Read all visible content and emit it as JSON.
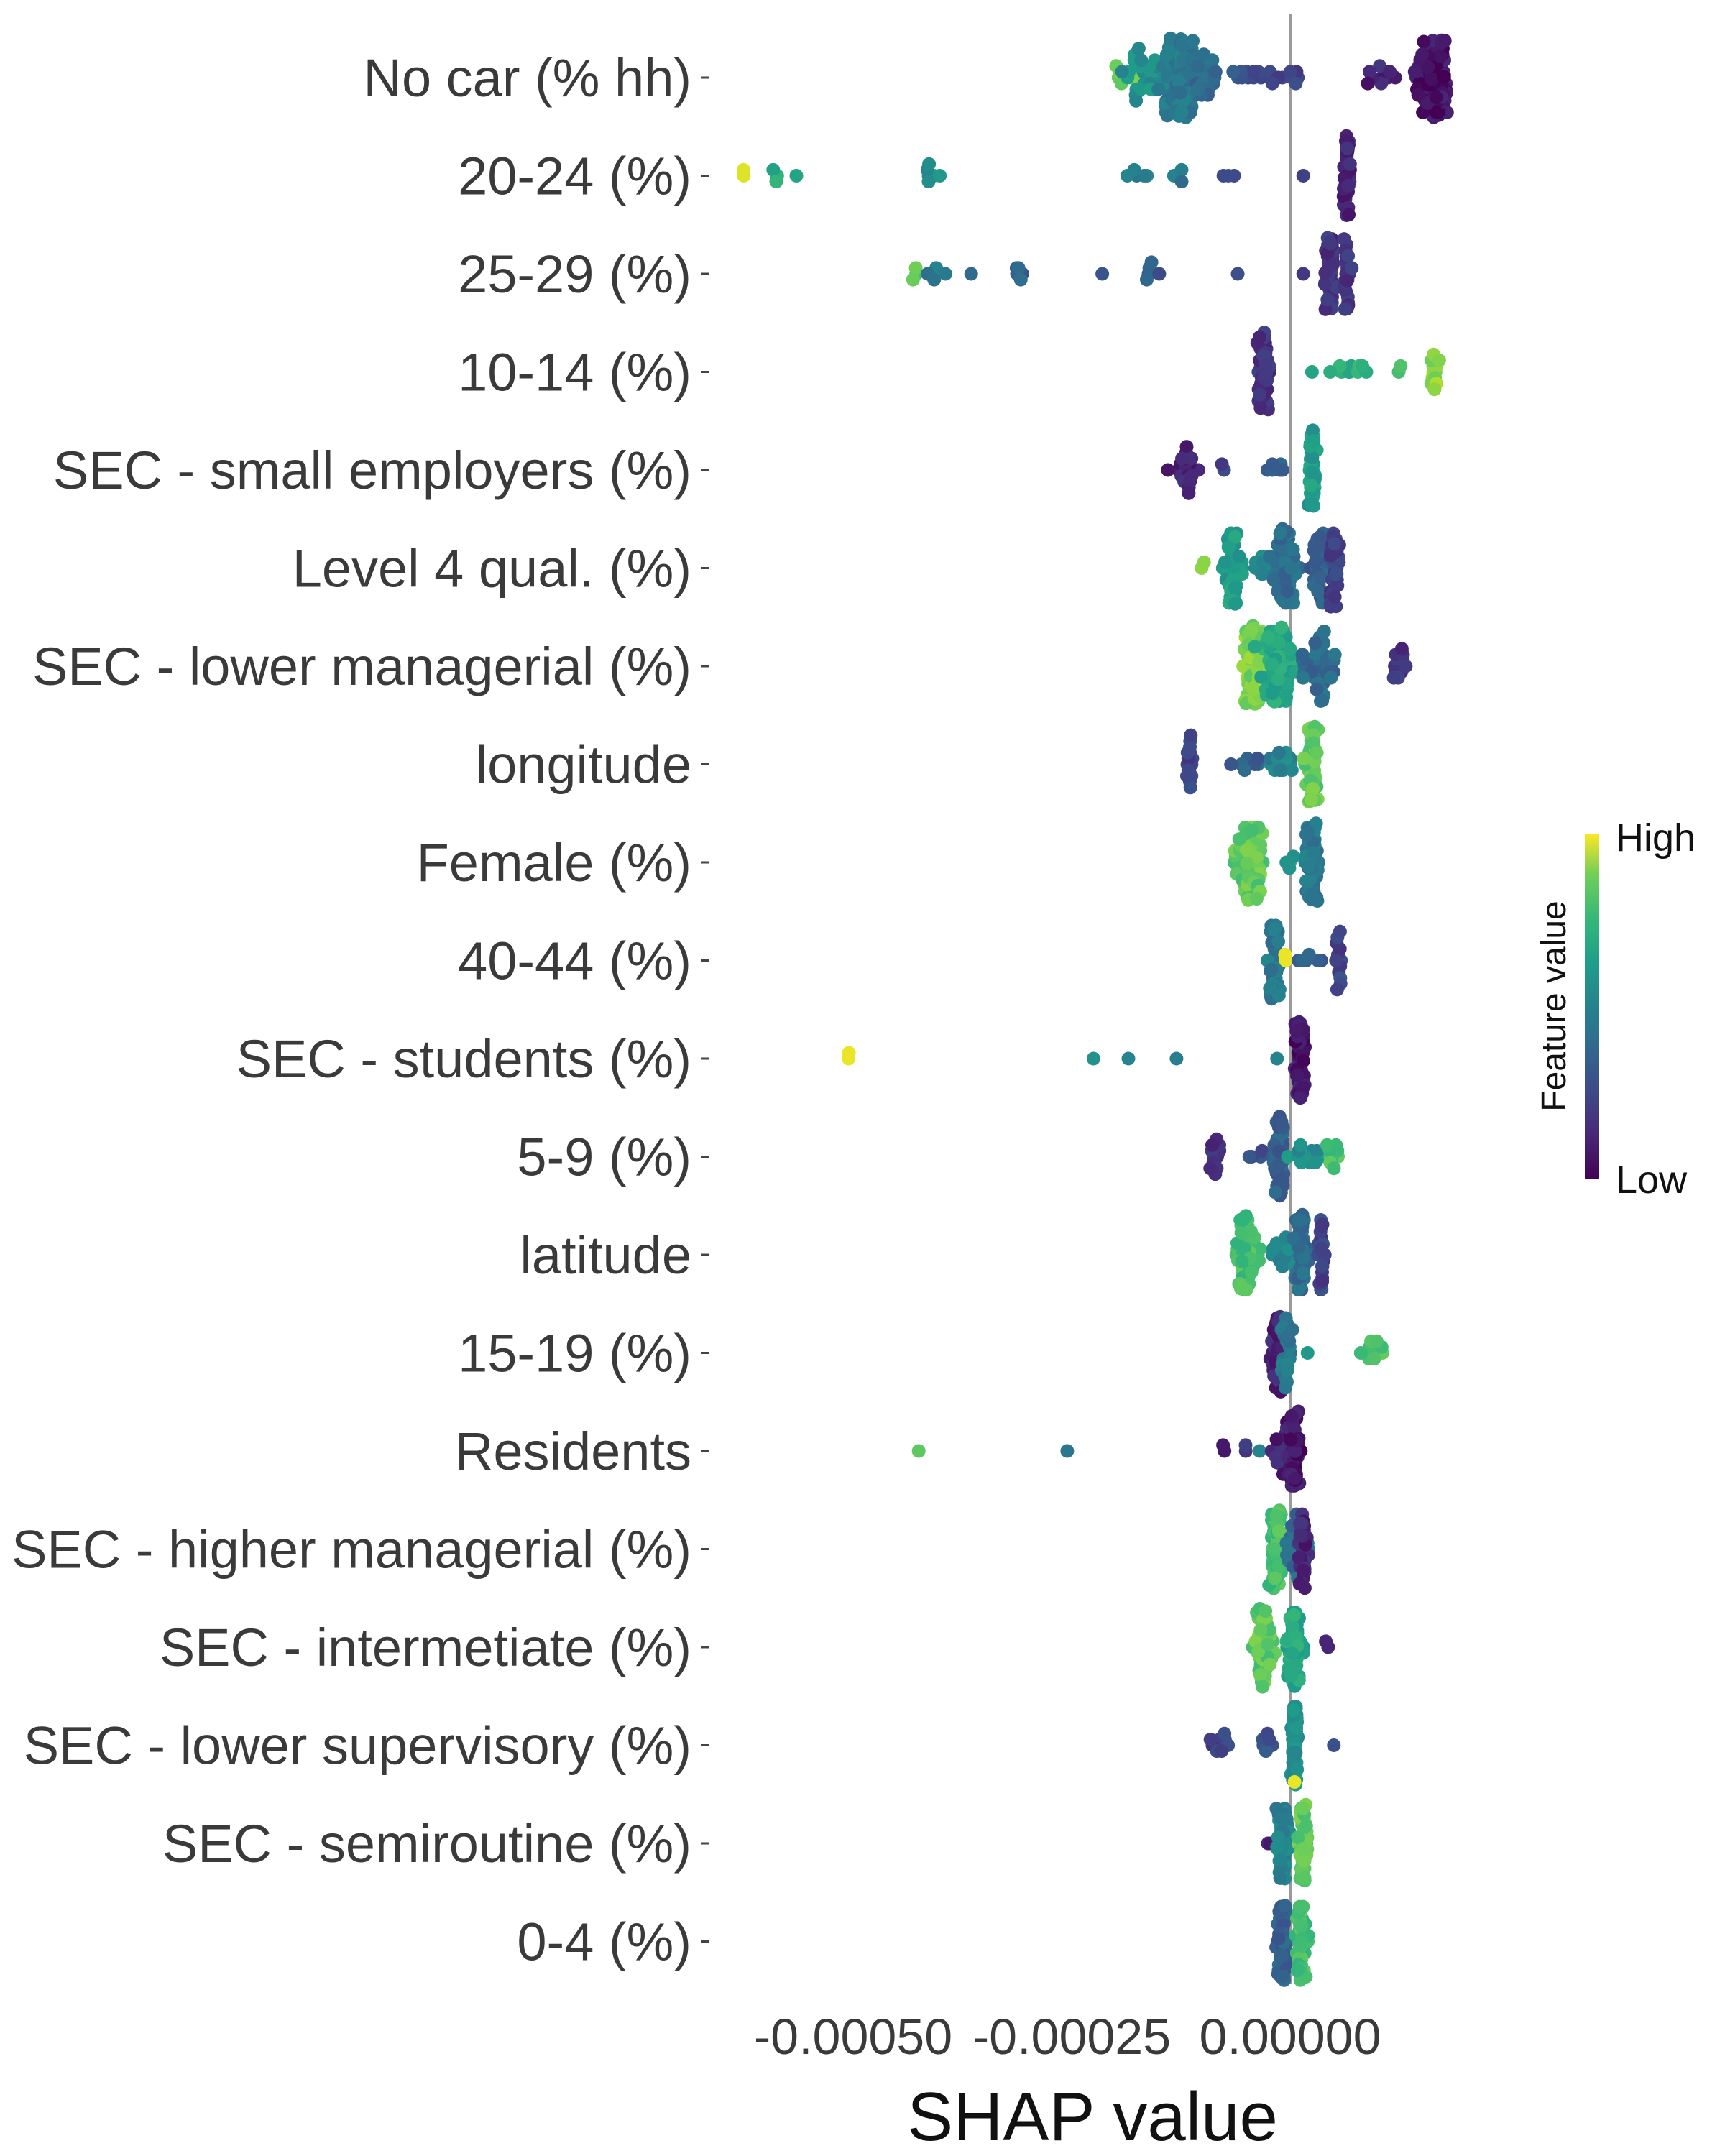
{
  "chart_data": {
    "type": "scatter",
    "subtype": "beeswarm",
    "title": "",
    "xlabel": "SHAP value",
    "ylabel": "",
    "xlim": [
      -0.00064,
      0.00022
    ],
    "xticks": [
      -0.0005,
      -0.00025,
      0.0
    ],
    "xtick_labels": [
      "-0.00050",
      "-0.00025",
      "0.00000"
    ],
    "zero_line": 0.0,
    "grid": false,
    "features": [
      "No car (% hh)",
      "20-24 (%)",
      "25-29 (%)",
      "10-14 (%)",
      "SEC - small employers (%)",
      "Level 4 qual. (%)",
      "SEC - lower managerial (%)",
      "longitude",
      "Female (%)",
      "40-44 (%)",
      "SEC - students (%)",
      "5-9 (%)",
      "latitude",
      "15-19 (%)",
      "Residents",
      "SEC - higher managerial (%)",
      "SEC - intermetiate (%)",
      "SEC - lower supervisory (%)",
      "SEC - semiroutine (%)",
      "0-4 (%)"
    ],
    "clusters": [
      [
        {
          "x": -0.000185,
          "v": 0.75,
          "n": 10,
          "s": 1e-05
        },
        {
          "x": -0.000165,
          "v": 0.5,
          "n": 30,
          "s": 1.5e-05
        },
        {
          "x": -0.000125,
          "v": 0.4,
          "n": 150,
          "s": 1e-05
        },
        {
          "x": -9.5e-05,
          "v": 0.35,
          "n": 20,
          "s": 1e-05
        },
        {
          "x": -4e-05,
          "v": 0.25,
          "n": 12,
          "s": 1.2e-05
        },
        {
          "x": 0.0,
          "v": 0.2,
          "n": 8,
          "s": 1e-05
        },
        {
          "x": 0.000105,
          "v": 0.1,
          "n": 10,
          "s": 1e-05
        },
        {
          "x": 0.000165,
          "v": 0.05,
          "n": 110,
          "s": 8e-06
        }
      ],
      [
        {
          "x": -0.000625,
          "v": 0.95,
          "n": 2,
          "s": 2e-06
        },
        {
          "x": -0.0006,
          "v": 0.62,
          "n": 3,
          "s": 5e-06
        },
        {
          "x": -0.000565,
          "v": 0.55,
          "n": 1,
          "s": 0.0
        },
        {
          "x": -0.000415,
          "v": 0.5,
          "n": 6,
          "s": 6e-06
        },
        {
          "x": -0.000175,
          "v": 0.45,
          "n": 5,
          "s": 8e-06
        },
        {
          "x": -0.00013,
          "v": 0.4,
          "n": 4,
          "s": 5e-06
        },
        {
          "x": -6.5e-05,
          "v": 0.25,
          "n": 3,
          "s": 8e-06
        },
        {
          "x": 1.5e-05,
          "v": 0.2,
          "n": 1,
          "s": 0.0
        },
        {
          "x": 6.5e-05,
          "v": 0.1,
          "n": 40,
          "s": 2e-06
        }
      ],
      [
        {
          "x": -0.00043,
          "v": 0.75,
          "n": 3,
          "s": 2e-06
        },
        {
          "x": -0.000405,
          "v": 0.4,
          "n": 5,
          "s": 8e-06
        },
        {
          "x": -0.000365,
          "v": 0.35,
          "n": 1,
          "s": 0.0
        },
        {
          "x": -0.000315,
          "v": 0.3,
          "n": 5,
          "s": 8e-06
        },
        {
          "x": -0.000215,
          "v": 0.3,
          "n": 1,
          "s": 0.0
        },
        {
          "x": -0.000155,
          "v": 0.28,
          "n": 5,
          "s": 8e-06
        },
        {
          "x": -6e-05,
          "v": 0.25,
          "n": 1,
          "s": 0.0
        },
        {
          "x": 1.5e-05,
          "v": 0.2,
          "n": 1,
          "s": 0.0
        },
        {
          "x": 4.5e-05,
          "v": 0.15,
          "n": 40,
          "s": 3e-06
        },
        {
          "x": 6.5e-05,
          "v": 0.15,
          "n": 25,
          "s": 2e-06
        }
      ],
      [
        {
          "x": -3e-05,
          "v": 0.15,
          "n": 50,
          "s": 3e-06
        },
        {
          "x": 2.5e-05,
          "v": 0.55,
          "n": 1,
          "s": 0.0
        },
        {
          "x": 6.5e-05,
          "v": 0.62,
          "n": 10,
          "s": 1.2e-05
        },
        {
          "x": 0.000125,
          "v": 0.7,
          "n": 2,
          "s": 3e-06
        },
        {
          "x": 0.000165,
          "v": 0.82,
          "n": 12,
          "s": 3e-06
        }
      ],
      [
        {
          "x": -0.00012,
          "v": 0.1,
          "n": 20,
          "s": 7e-06
        },
        {
          "x": -7.5e-05,
          "v": 0.2,
          "n": 2,
          "s": 3e-06
        },
        {
          "x": -1.5e-05,
          "v": 0.3,
          "n": 6,
          "s": 8e-06
        },
        {
          "x": 2.5e-05,
          "v": 0.55,
          "n": 45,
          "s": 2e-06
        }
      ],
      [
        {
          "x": -0.0001,
          "v": 0.85,
          "n": 2,
          "s": 2e-06
        },
        {
          "x": -6.5e-05,
          "v": 0.55,
          "n": 40,
          "s": 5e-06
        },
        {
          "x": -3e-05,
          "v": 0.45,
          "n": 12,
          "s": 8e-06
        },
        {
          "x": -5e-06,
          "v": 0.35,
          "n": 60,
          "s": 8e-06
        },
        {
          "x": 3.5e-05,
          "v": 0.3,
          "n": 30,
          "s": 3e-06
        },
        {
          "x": 5e-05,
          "v": 0.2,
          "n": 40,
          "s": 2e-06
        }
      ],
      [
        {
          "x": -4e-05,
          "v": 0.8,
          "n": 130,
          "s": 5e-06
        },
        {
          "x": -1.5e-05,
          "v": 0.6,
          "n": 80,
          "s": 1e-05
        },
        {
          "x": 3.5e-05,
          "v": 0.35,
          "n": 40,
          "s": 1e-05
        },
        {
          "x": 0.00013,
          "v": 0.15,
          "n": 12,
          "s": 6e-06
        }
      ],
      [
        {
          "x": -0.000115,
          "v": 0.2,
          "n": 15,
          "s": 2e-06
        },
        {
          "x": -5e-05,
          "v": 0.3,
          "n": 8,
          "s": 1e-05
        },
        {
          "x": -1e-05,
          "v": 0.45,
          "n": 14,
          "s": 8e-06
        },
        {
          "x": 2.5e-05,
          "v": 0.75,
          "n": 55,
          "s": 3e-06
        }
      ],
      [
        {
          "x": -4.5e-05,
          "v": 0.75,
          "n": 70,
          "s": 8e-06
        },
        {
          "x": 0.0,
          "v": 0.55,
          "n": 4,
          "s": 4e-06
        },
        {
          "x": 2.5e-05,
          "v": 0.4,
          "n": 55,
          "s": 4e-06
        }
      ],
      [
        {
          "x": -1.8e-05,
          "v": 0.4,
          "n": 40,
          "s": 3e-06
        },
        {
          "x": -5e-06,
          "v": 0.97,
          "n": 2,
          "s": 1e-06
        },
        {
          "x": 2.5e-05,
          "v": 0.3,
          "n": 6,
          "s": 8e-06
        },
        {
          "x": 5.5e-05,
          "v": 0.2,
          "n": 12,
          "s": 2e-06
        }
      ],
      [
        {
          "x": -0.000505,
          "v": 0.97,
          "n": 2,
          "s": 1e-06
        },
        {
          "x": -0.000225,
          "v": 0.5,
          "n": 1,
          "s": 0.0
        },
        {
          "x": -0.000185,
          "v": 0.48,
          "n": 1,
          "s": 0.0
        },
        {
          "x": -0.00013,
          "v": 0.45,
          "n": 1,
          "s": 0.0
        },
        {
          "x": -1.5e-05,
          "v": 0.4,
          "n": 1,
          "s": 0.0
        },
        {
          "x": 1.2e-05,
          "v": 0.05,
          "n": 45,
          "s": 3e-06
        }
      ],
      [
        {
          "x": -8.5e-05,
          "v": 0.15,
          "n": 12,
          "s": 4e-06
        },
        {
          "x": -3.5e-05,
          "v": 0.25,
          "n": 4,
          "s": 5e-06
        },
        {
          "x": -1.2e-05,
          "v": 0.3,
          "n": 60,
          "s": 3e-06
        },
        {
          "x": 2e-05,
          "v": 0.5,
          "n": 15,
          "s": 1e-05
        },
        {
          "x": 5e-05,
          "v": 0.7,
          "n": 10,
          "s": 4e-06
        }
      ],
      [
        {
          "x": -5e-05,
          "v": 0.7,
          "n": 55,
          "s": 6e-06
        },
        {
          "x": -5e-06,
          "v": 0.45,
          "n": 20,
          "s": 1e-05
        },
        {
          "x": 1.2e-05,
          "v": 0.35,
          "n": 45,
          "s": 4e-06
        },
        {
          "x": 3.5e-05,
          "v": 0.2,
          "n": 25,
          "s": 2e-06
        }
      ],
      [
        {
          "x": -1.5e-05,
          "v": 0.1,
          "n": 45,
          "s": 3e-06
        },
        {
          "x": -5e-06,
          "v": 0.4,
          "n": 20,
          "s": 3e-06
        },
        {
          "x": 2e-05,
          "v": 0.55,
          "n": 1,
          "s": 0.0
        },
        {
          "x": 9.5e-05,
          "v": 0.7,
          "n": 12,
          "s": 7e-06
        }
      ],
      [
        {
          "x": -0.000425,
          "v": 0.7,
          "n": 1,
          "s": 0.0
        },
        {
          "x": -0.000255,
          "v": 0.4,
          "n": 1,
          "s": 0.0
        },
        {
          "x": -7.5e-05,
          "v": 0.05,
          "n": 2,
          "s": 1e-06
        },
        {
          "x": -5e-05,
          "v": 0.15,
          "n": 2,
          "s": 2e-06
        },
        {
          "x": -3.5e-05,
          "v": 0.45,
          "n": 1,
          "s": 0.0
        },
        {
          "x": -1e-05,
          "v": 0.1,
          "n": 15,
          "s": 6e-06
        },
        {
          "x": 5e-06,
          "v": 0.05,
          "n": 50,
          "s": 3e-06
        }
      ],
      [
        {
          "x": -1.5e-05,
          "v": 0.7,
          "n": 60,
          "s": 3e-06
        },
        {
          "x": 5e-06,
          "v": 0.35,
          "n": 25,
          "s": 6e-06
        },
        {
          "x": 1.5e-05,
          "v": 0.1,
          "n": 30,
          "s": 3e-06
        }
      ],
      [
        {
          "x": -3e-05,
          "v": 0.75,
          "n": 50,
          "s": 6e-06
        },
        {
          "x": 5e-06,
          "v": 0.6,
          "n": 60,
          "s": 4e-06
        },
        {
          "x": 4e-05,
          "v": 0.15,
          "n": 2,
          "s": 2e-06
        }
      ],
      [
        {
          "x": -8e-05,
          "v": 0.2,
          "n": 10,
          "s": 8e-06
        },
        {
          "x": -3e-05,
          "v": 0.25,
          "n": 6,
          "s": 5e-06
        },
        {
          "x": 5e-06,
          "v": 0.5,
          "n": 60,
          "s": 2e-06
        },
        {
          "x": 5e-06,
          "v": 0.97,
          "n": 1,
          "s": 0.0
        },
        {
          "x": 5e-05,
          "v": 0.2,
          "n": 1,
          "s": 0.0
        }
      ],
      [
        {
          "x": -2.5e-05,
          "v": 0.05,
          "n": 2,
          "s": 2e-06
        },
        {
          "x": -8e-06,
          "v": 0.45,
          "n": 60,
          "s": 3e-06
        },
        {
          "x": 1.5e-05,
          "v": 0.75,
          "n": 50,
          "s": 3e-06
        }
      ],
      [
        {
          "x": -8e-06,
          "v": 0.3,
          "n": 60,
          "s": 3e-06
        },
        {
          "x": 1.2e-05,
          "v": 0.7,
          "n": 40,
          "s": 3e-06
        }
      ]
    ],
    "colorbar": {
      "title": "Feature value",
      "high_label": "High",
      "low_label": "Low",
      "colormap": "viridis",
      "high_color": "#fde725",
      "low_color": "#440154"
    }
  },
  "colors": {
    "zero_line": "#9a9a9a",
    "tick": "#444444"
  }
}
